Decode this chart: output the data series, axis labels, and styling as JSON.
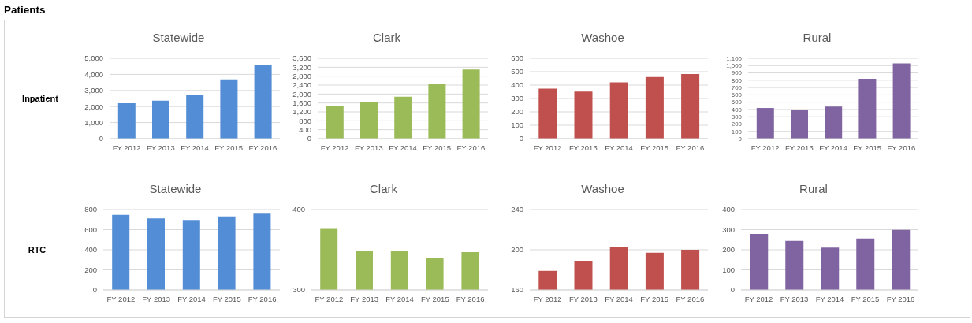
{
  "chart_data": [
    {
      "type": "bar",
      "title": "Statewide",
      "ylabel": "Inpatient",
      "annotations": [
        "Patients"
      ],
      "categories": [
        "FY 2012",
        "FY 2013",
        "FY 2014",
        "FY 2015",
        "FY 2016"
      ],
      "values": [
        2200,
        2360,
        2730,
        3690,
        4570
      ],
      "color": "#538dd5",
      "ylim": [
        0,
        5000
      ],
      "yticks": [
        0,
        {
          "value": 1000,
          "label": "1,000"
        },
        {
          "value": 2000,
          "label": "2,000"
        },
        {
          "value": 3000,
          "label": "3,000"
        },
        {
          "value": 4000,
          "label": "4,000"
        },
        {
          "value": 5000,
          "label": "5,000"
        }
      ],
      "grid": "y"
    },
    {
      "type": "bar",
      "title": "Clark",
      "categories": [
        "FY 2012",
        "FY 2013",
        "FY 2014",
        "FY 2015",
        "FY 2016"
      ],
      "values": [
        1450,
        1650,
        1880,
        2460,
        3100
      ],
      "color": "#9bbb59",
      "ylim": [
        0,
        3600
      ],
      "yticks": [
        0,
        400,
        800,
        {
          "value": 1200,
          "label": "1,200"
        },
        {
          "value": 1600,
          "label": "1,600"
        },
        {
          "value": 2000,
          "label": "2,000"
        },
        {
          "value": 2400,
          "label": "2,400"
        },
        {
          "value": 2800,
          "label": "2,800"
        },
        {
          "value": 3200,
          "label": "3,200"
        },
        {
          "value": 3600,
          "label": "3,600"
        }
      ],
      "grid": "y"
    },
    {
      "type": "bar",
      "title": "Washoe",
      "categories": [
        "FY 2012",
        "FY 2013",
        "FY 2014",
        "FY 2015",
        "FY 2016"
      ],
      "values": [
        373,
        351,
        420,
        461,
        483
      ],
      "color": "#c0504d",
      "ylim": [
        0,
        600
      ],
      "yticks": [
        0,
        100,
        200,
        300,
        400,
        500,
        600
      ],
      "grid": "y"
    },
    {
      "type": "bar",
      "title": "Rural",
      "categories": [
        "FY 2012",
        "FY 2013",
        "FY 2014",
        "FY 2015",
        "FY 2016"
      ],
      "values": [
        420,
        390,
        440,
        820,
        1030
      ],
      "color": "#8064a2",
      "ylim": [
        0,
        1100
      ],
      "yticks": [
        0,
        100,
        200,
        300,
        400,
        500,
        600,
        700,
        800,
        900,
        {
          "value": 1000,
          "label": "1,000"
        },
        {
          "value": 1100,
          "label": "1,100"
        }
      ],
      "grid": "y"
    },
    {
      "type": "bar",
      "title": "Statewide",
      "ylabel": "RTC",
      "categories": [
        "FY 2012",
        "FY 2013",
        "FY 2014",
        "FY 2015",
        "FY 2016"
      ],
      "values": [
        747,
        712,
        697,
        731,
        759
      ],
      "color": "#538dd5",
      "ylim": [
        0,
        800
      ],
      "yticks": [
        0,
        200,
        400,
        600,
        800
      ],
      "grid": "y"
    },
    {
      "type": "bar",
      "title": "Clark",
      "categories": [
        "FY 2012",
        "FY 2013",
        "FY 2014",
        "FY 2015",
        "FY 2016"
      ],
      "values": [
        376,
        348,
        348,
        340,
        347
      ],
      "color": "#9bbb59",
      "ylim": [
        300,
        400
      ],
      "yticks": [
        300,
        400
      ],
      "grid": "y"
    },
    {
      "type": "bar",
      "title": "Washoe",
      "categories": [
        "FY 2012",
        "FY 2013",
        "FY 2014",
        "FY 2015",
        "FY 2016"
      ],
      "values": [
        179,
        189,
        203,
        197,
        200
      ],
      "color": "#c0504d",
      "ylim": [
        160,
        240
      ],
      "yticks": [
        160,
        200,
        240
      ],
      "grid": "y"
    },
    {
      "type": "bar",
      "title": "Rural",
      "categories": [
        "FY 2012",
        "FY 2013",
        "FY 2014",
        "FY 2015",
        "FY 2016"
      ],
      "values": [
        278,
        244,
        211,
        256,
        299
      ],
      "color": "#8064a2",
      "ylim": [
        0,
        400
      ],
      "yticks": [
        0,
        100,
        200,
        300,
        400
      ],
      "grid": "y"
    }
  ]
}
